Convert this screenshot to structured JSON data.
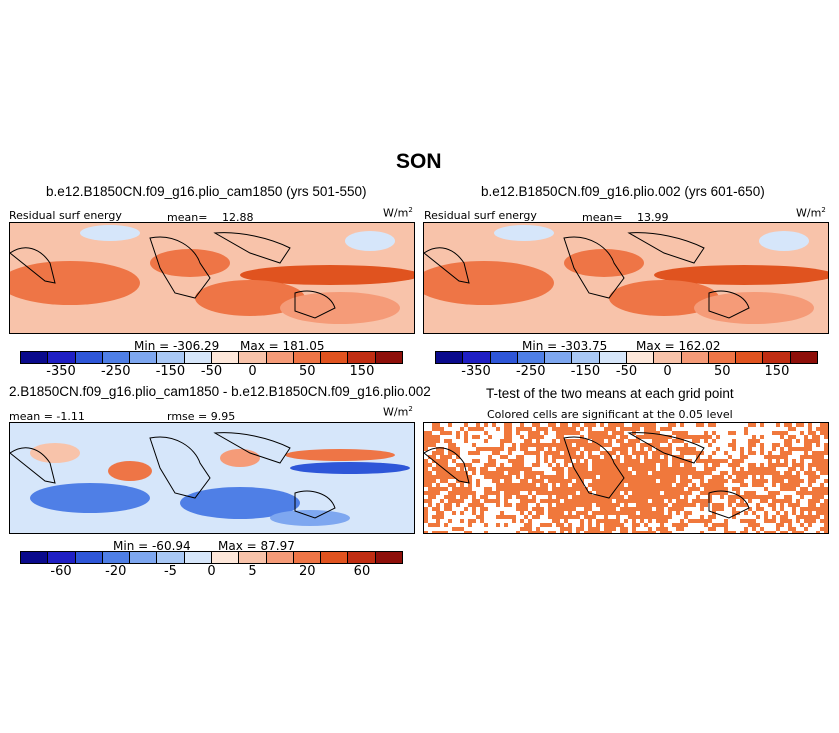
{
  "title": "SON",
  "colors": {
    "bar_full": [
      "#0a0a8c",
      "#1f1fc4",
      "#2e56d8",
      "#4f7fe6",
      "#7ea7f0",
      "#a9c8f5",
      "#d6e6fa",
      "#fde7da",
      "#f8c3aa",
      "#f59b78",
      "#ee7546",
      "#e0531f",
      "#c02d12",
      "#8e0f0a"
    ],
    "bar_diff": [
      "#0a0a8c",
      "#1f1fc4",
      "#2e56d8",
      "#4f7fe6",
      "#7ea7f0",
      "#a9c8f5",
      "#d6e6fa",
      "#fde7da",
      "#f8c3aa",
      "#f59b78",
      "#ee7546",
      "#e0531f",
      "#c02d12",
      "#8e0f0a"
    ],
    "land": "#000000",
    "ttest_cell": "#f0783c"
  },
  "panels": {
    "p1": {
      "title": "b.e12.B1850CN.f09_g16.plio_cam1850 (yrs 501-550)",
      "variable": "Residual surf energy",
      "mean_label": "mean=",
      "mean_value": "12.88",
      "units": "W/m",
      "units_sup": "2",
      "min_label": "Min = -306.29",
      "max_label": "Max = 181.05",
      "ticks": [
        "-350",
        "-250",
        "-150",
        "-50",
        "0",
        "50",
        "150"
      ]
    },
    "p2": {
      "title": "b.e12.B1850CN.f09_g16.plio.002 (yrs 601-650)",
      "variable": "Residual surf energy",
      "mean_label": "mean=",
      "mean_value": "13.99",
      "units": "W/m",
      "units_sup": "2",
      "min_label": "Min = -303.75",
      "max_label": "Max = 162.02",
      "ticks": [
        "-350",
        "-250",
        "-150",
        "-50",
        "0",
        "50",
        "150"
      ]
    },
    "p3": {
      "title": "2.B1850CN.f09_g16.plio_cam1850 - b.e12.B1850CN.f09_g16.plio.002",
      "mean_label": "mean = -1.11",
      "rmse_label": "rmse =   9.95",
      "units": "W/m",
      "units_sup": "2",
      "min_label": "Min = -60.94",
      "max_label": "Max =  87.97",
      "ticks": [
        "-60",
        "-20",
        "-5",
        "0",
        "5",
        "20",
        "60"
      ]
    },
    "p4": {
      "title": "T-test of the two means at each grid point",
      "subtitle": "Colored cells are significant at the 0.05 level"
    }
  }
}
